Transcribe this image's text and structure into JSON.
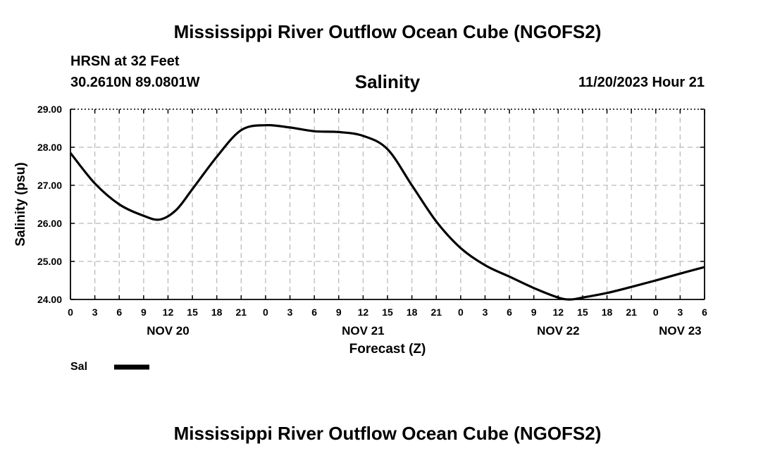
{
  "header": {
    "title_top": "Mississippi River Outflow Ocean Cube (NGOFS2)",
    "station": "HRSN at 32 Feet",
    "coords": "30.2610N  89.0801W",
    "chart_title": "Salinity",
    "timestamp": "11/20/2023 Hour 21",
    "title_bottom": "Mississippi River Outflow Ocean Cube (NGOFS2)"
  },
  "legend": {
    "label": "Sal"
  },
  "colors": {
    "line": "#000000",
    "grid": "#bbbbbb"
  },
  "chart_data": {
    "type": "line",
    "title": "Salinity",
    "xlabel": "Forecast (Z)",
    "ylabel": "Salinity (psu)",
    "xlim": [
      0,
      78
    ],
    "ylim": [
      24.0,
      29.0
    ],
    "x_ticks": [
      0,
      3,
      6,
      9,
      12,
      15,
      18,
      21,
      24,
      27,
      30,
      33,
      36,
      39,
      42,
      45,
      48,
      51,
      54,
      57,
      60,
      63,
      66,
      69,
      72,
      75,
      78
    ],
    "x_tick_labels": [
      "0",
      "3",
      "6",
      "9",
      "12",
      "15",
      "18",
      "21",
      "0",
      "3",
      "6",
      "9",
      "12",
      "15",
      "18",
      "21",
      "0",
      "3",
      "6",
      "9",
      "12",
      "15",
      "18",
      "21",
      "0",
      "3",
      "6"
    ],
    "date_labels": [
      {
        "x": 12,
        "label": "NOV 20"
      },
      {
        "x": 36,
        "label": "NOV 21"
      },
      {
        "x": 60,
        "label": "NOV 22"
      },
      {
        "x": 75,
        "label": "NOV 23"
      }
    ],
    "y_ticks": [
      24.0,
      25.0,
      26.0,
      27.0,
      28.0,
      29.0
    ],
    "y_tick_labels": [
      "24.00",
      "25.00",
      "26.00",
      "27.00",
      "28.00",
      "29.00"
    ],
    "grid": true,
    "series": [
      {
        "name": "Sal",
        "x": [
          0,
          3,
          6,
          9,
          11,
          13,
          15,
          18,
          21,
          24,
          27,
          30,
          33,
          36,
          39,
          42,
          45,
          48,
          51,
          54,
          57,
          60,
          61.5,
          63,
          66,
          69,
          72,
          75,
          78
        ],
        "values": [
          27.85,
          27.05,
          26.5,
          26.2,
          26.1,
          26.35,
          26.9,
          27.75,
          28.45,
          28.58,
          28.52,
          28.42,
          28.4,
          28.3,
          27.95,
          27.0,
          26.05,
          25.35,
          24.9,
          24.6,
          24.3,
          24.05,
          24.0,
          24.05,
          24.17,
          24.33,
          24.5,
          24.68,
          24.85
        ]
      }
    ]
  }
}
